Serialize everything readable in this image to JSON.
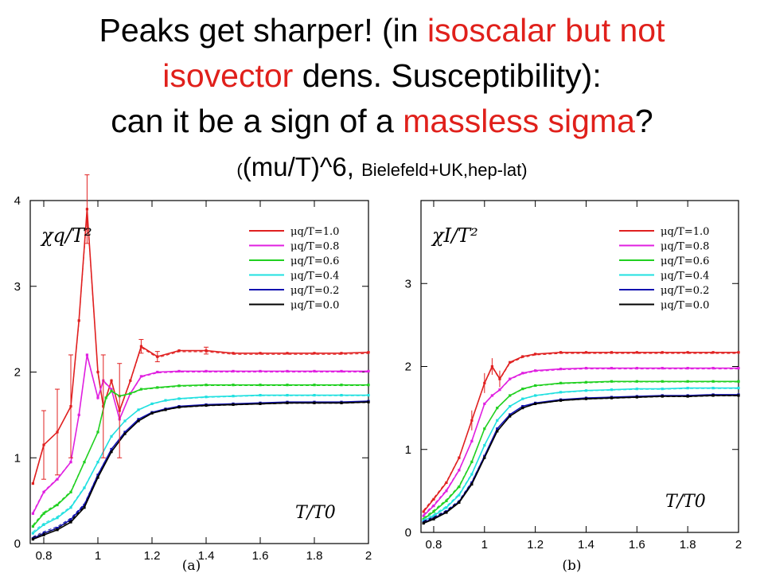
{
  "header": {
    "line1_a": "Peaks get sharper! (in ",
    "line1_red": "isoscalar but not",
    "line2_red": "isovector",
    "line2_b": " dens. Susceptibility):",
    "line3_a": "can it be a sign of a ",
    "line3_red": "massless sigma",
    "line3_b": "?",
    "sub_open": "(",
    "sub_big": "(mu/T)^6, ",
    "sub_small": "Bielefeld+UK,hep-lat)"
  },
  "colors": {
    "title_red": "#e0201b",
    "series": [
      "#e02020",
      "#e020e0",
      "#20d020",
      "#20e0e0",
      "#1010b0",
      "#000000"
    ]
  },
  "chart_data": [
    {
      "type": "line",
      "panel_label": "(a)",
      "ylabel": "χq/T²",
      "xlabel": "T/T0",
      "xlim": [
        0.75,
        2.0
      ],
      "ylim": [
        0,
        4
      ],
      "xticks": [
        "0.8",
        "1",
        "1.2",
        "1.4",
        "1.6",
        "1.8",
        "2"
      ],
      "yticks": [
        "0",
        "1",
        "2",
        "3",
        "4"
      ],
      "legend_position": "top-right",
      "series": [
        {
          "name": "μq/T=1.0",
          "x": [
            0.76,
            0.8,
            0.85,
            0.9,
            0.93,
            0.96,
            1.0,
            1.02,
            1.05,
            1.08,
            1.12,
            1.16,
            1.22,
            1.3,
            1.4,
            1.5,
            1.6,
            1.7,
            1.8,
            1.9,
            2.0
          ],
          "y": [
            0.7,
            1.15,
            1.3,
            1.6,
            2.6,
            3.9,
            2.0,
            1.6,
            1.9,
            1.55,
            1.9,
            2.3,
            2.18,
            2.25,
            2.25,
            2.22,
            2.22,
            2.22,
            2.22,
            2.22,
            2.23
          ]
        },
        {
          "name": "μq/T=0.8",
          "x": [
            0.76,
            0.8,
            0.85,
            0.9,
            0.93,
            0.96,
            1.0,
            1.02,
            1.05,
            1.08,
            1.12,
            1.16,
            1.22,
            1.3,
            1.4,
            1.5,
            1.6,
            1.7,
            1.8,
            1.9,
            2.0
          ],
          "y": [
            0.35,
            0.6,
            0.75,
            0.95,
            1.5,
            2.2,
            1.7,
            1.9,
            1.8,
            1.45,
            1.75,
            1.95,
            2.0,
            2.01,
            2.01,
            2.01,
            2.01,
            2.01,
            2.01,
            2.01,
            2.01
          ]
        },
        {
          "name": "μq/T=0.6",
          "x": [
            0.76,
            0.8,
            0.85,
            0.9,
            0.95,
            1.0,
            1.03,
            1.05,
            1.08,
            1.12,
            1.16,
            1.22,
            1.3,
            1.4,
            1.5,
            1.6,
            1.7,
            1.8,
            1.9,
            2.0
          ],
          "y": [
            0.2,
            0.35,
            0.45,
            0.6,
            0.95,
            1.3,
            1.7,
            1.78,
            1.72,
            1.75,
            1.8,
            1.82,
            1.84,
            1.85,
            1.85,
            1.85,
            1.85,
            1.85,
            1.85,
            1.85
          ]
        },
        {
          "name": "μq/T=0.4",
          "x": [
            0.76,
            0.8,
            0.85,
            0.9,
            0.95,
            1.0,
            1.05,
            1.1,
            1.15,
            1.2,
            1.25,
            1.3,
            1.4,
            1.5,
            1.6,
            1.7,
            1.8,
            1.9,
            2.0
          ],
          "y": [
            0.12,
            0.22,
            0.3,
            0.42,
            0.65,
            0.95,
            1.25,
            1.43,
            1.56,
            1.63,
            1.67,
            1.69,
            1.71,
            1.72,
            1.73,
            1.73,
            1.73,
            1.73,
            1.73
          ]
        },
        {
          "name": "μq/T=0.2",
          "x": [
            0.76,
            0.8,
            0.85,
            0.9,
            0.95,
            1.0,
            1.05,
            1.1,
            1.15,
            1.2,
            1.25,
            1.3,
            1.4,
            1.5,
            1.6,
            1.7,
            1.8,
            1.9,
            2.0
          ],
          "y": [
            0.06,
            0.12,
            0.18,
            0.28,
            0.45,
            0.8,
            1.1,
            1.3,
            1.45,
            1.53,
            1.57,
            1.6,
            1.62,
            1.63,
            1.64,
            1.65,
            1.65,
            1.65,
            1.66
          ]
        },
        {
          "name": "μq/T=0.0",
          "x": [
            0.76,
            0.8,
            0.85,
            0.9,
            0.95,
            1.0,
            1.05,
            1.1,
            1.15,
            1.2,
            1.25,
            1.3,
            1.4,
            1.5,
            1.6,
            1.7,
            1.8,
            1.9,
            2.0
          ],
          "y": [
            0.05,
            0.1,
            0.16,
            0.25,
            0.42,
            0.77,
            1.07,
            1.28,
            1.43,
            1.52,
            1.56,
            1.59,
            1.61,
            1.62,
            1.63,
            1.64,
            1.64,
            1.64,
            1.65
          ]
        }
      ]
    },
    {
      "type": "line",
      "panel_label": "(b)",
      "ylabel": "χI/T²",
      "xlabel": "T/T0",
      "xlim": [
        0.75,
        2.0
      ],
      "ylim": [
        0,
        4
      ],
      "xticks": [
        "0.8",
        "1",
        "1.2",
        "1.4",
        "1.6",
        "1.8",
        "2"
      ],
      "yticks": [
        "0",
        "1",
        "2",
        "3"
      ],
      "legend_position": "top-right",
      "series": [
        {
          "name": "μq/T=1.0",
          "x": [
            0.76,
            0.8,
            0.85,
            0.9,
            0.95,
            1.0,
            1.03,
            1.06,
            1.1,
            1.15,
            1.2,
            1.3,
            1.4,
            1.5,
            1.6,
            1.7,
            1.8,
            1.9,
            2.0
          ],
          "y": [
            0.25,
            0.4,
            0.6,
            0.9,
            1.35,
            1.8,
            2.0,
            1.85,
            2.05,
            2.12,
            2.15,
            2.17,
            2.17,
            2.17,
            2.17,
            2.17,
            2.17,
            2.17,
            2.17
          ]
        },
        {
          "name": "μq/T=0.8",
          "x": [
            0.76,
            0.8,
            0.85,
            0.9,
            0.95,
            1.0,
            1.03,
            1.06,
            1.1,
            1.15,
            1.2,
            1.3,
            1.4,
            1.5,
            1.6,
            1.7,
            1.8,
            1.9,
            2.0
          ],
          "y": [
            0.2,
            0.32,
            0.5,
            0.75,
            1.1,
            1.55,
            1.65,
            1.72,
            1.85,
            1.92,
            1.95,
            1.97,
            1.98,
            1.98,
            1.98,
            1.98,
            1.98,
            1.98,
            1.98
          ]
        },
        {
          "name": "μq/T=0.6",
          "x": [
            0.76,
            0.8,
            0.85,
            0.9,
            0.95,
            1.0,
            1.05,
            1.1,
            1.15,
            1.2,
            1.3,
            1.4,
            1.5,
            1.6,
            1.7,
            1.8,
            1.9,
            2.0
          ],
          "y": [
            0.16,
            0.25,
            0.38,
            0.55,
            0.85,
            1.25,
            1.5,
            1.65,
            1.73,
            1.77,
            1.8,
            1.81,
            1.82,
            1.82,
            1.82,
            1.82,
            1.82,
            1.82
          ]
        },
        {
          "name": "μq/T=0.4",
          "x": [
            0.76,
            0.8,
            0.85,
            0.9,
            0.95,
            1.0,
            1.05,
            1.1,
            1.15,
            1.2,
            1.3,
            1.4,
            1.5,
            1.6,
            1.7,
            1.8,
            1.9,
            2.0
          ],
          "y": [
            0.14,
            0.2,
            0.3,
            0.45,
            0.7,
            1.05,
            1.35,
            1.52,
            1.61,
            1.65,
            1.69,
            1.71,
            1.72,
            1.73,
            1.73,
            1.74,
            1.74,
            1.74
          ]
        },
        {
          "name": "μq/T=0.2",
          "x": [
            0.76,
            0.8,
            0.85,
            0.9,
            0.95,
            1.0,
            1.05,
            1.1,
            1.15,
            1.2,
            1.3,
            1.4,
            1.5,
            1.6,
            1.7,
            1.8,
            1.9,
            2.0
          ],
          "y": [
            0.12,
            0.17,
            0.25,
            0.37,
            0.6,
            0.92,
            1.25,
            1.42,
            1.52,
            1.56,
            1.6,
            1.62,
            1.63,
            1.64,
            1.65,
            1.65,
            1.66,
            1.66
          ]
        },
        {
          "name": "μq/T=0.0",
          "x": [
            0.76,
            0.8,
            0.85,
            0.9,
            0.95,
            1.0,
            1.05,
            1.1,
            1.15,
            1.2,
            1.3,
            1.4,
            1.5,
            1.6,
            1.7,
            1.8,
            1.9,
            2.0
          ],
          "y": [
            0.11,
            0.16,
            0.24,
            0.36,
            0.58,
            0.9,
            1.22,
            1.4,
            1.5,
            1.55,
            1.59,
            1.61,
            1.62,
            1.63,
            1.64,
            1.64,
            1.65,
            1.65
          ]
        }
      ]
    }
  ]
}
